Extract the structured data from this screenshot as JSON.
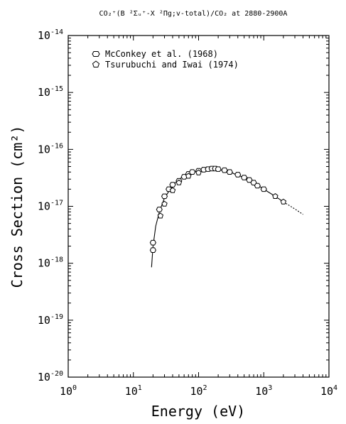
{
  "chart_data": {
    "type": "scatter",
    "title": "CO₂⁺(B ²Σᵤ⁺-X ²Πg;v-total)/CO₂ at 2880-2900A",
    "xlabel": "Energy (eV)",
    "ylabel": "Cross Section (cm²)",
    "x_scale": "log",
    "y_scale": "log",
    "xlim": [
      1,
      10000
    ],
    "ylim": [
      1e-20,
      1e-14
    ],
    "x_tick_labels": [
      {
        "base": "10",
        "exp": "0"
      },
      {
        "base": "10",
        "exp": "1"
      },
      {
        "base": "10",
        "exp": "2"
      },
      {
        "base": "10",
        "exp": "3"
      },
      {
        "base": "10",
        "exp": "4"
      }
    ],
    "y_tick_labels": [
      {
        "base": "10",
        "exp": "-20"
      },
      {
        "base": "10",
        "exp": "-19"
      },
      {
        "base": "10",
        "exp": "-18"
      },
      {
        "base": "10",
        "exp": "-17"
      },
      {
        "base": "10",
        "exp": "-16"
      },
      {
        "base": "10",
        "exp": "-15"
      },
      {
        "base": "10",
        "exp": "-14"
      }
    ],
    "grid": false,
    "legend_position": "top-left",
    "legend": [
      {
        "label": "McConkey et al. (1968)",
        "marker": "hexagon-wide"
      },
      {
        "label": "Tsurubuchi and Iwai (1974)",
        "marker": "pentagon"
      }
    ],
    "series": [
      {
        "name": "McConkey et al. (1968)",
        "marker": "hexagon-wide",
        "points": [
          [
            20,
            2.3e-18
          ],
          [
            20,
            1.7e-18
          ],
          [
            25,
            8.8e-18
          ],
          [
            30,
            1.5e-17
          ],
          [
            35,
            2e-17
          ],
          [
            40,
            2.4e-17
          ],
          [
            50,
            2.8e-17
          ],
          [
            60,
            3.3e-17
          ],
          [
            70,
            3.7e-17
          ],
          [
            80,
            4e-17
          ],
          [
            100,
            4.2e-17
          ],
          [
            120,
            4.4e-17
          ],
          [
            140,
            4.5e-17
          ],
          [
            160,
            4.6e-17
          ],
          [
            180,
            4.6e-17
          ],
          [
            200,
            4.5e-17
          ],
          [
            250,
            4.3e-17
          ],
          [
            300,
            4e-17
          ],
          [
            400,
            3.6e-17
          ],
          [
            500,
            3.2e-17
          ],
          [
            600,
            2.9e-17
          ],
          [
            700,
            2.6e-17
          ],
          [
            800,
            2.3e-17
          ],
          [
            1000,
            2e-17
          ]
        ]
      },
      {
        "name": "Tsurubuchi and Iwai (1974)",
        "marker": "pentagon",
        "points": [
          [
            26,
            6.8e-18
          ],
          [
            30,
            1.1e-17
          ],
          [
            40,
            1.9e-17
          ],
          [
            50,
            2.6e-17
          ],
          [
            70,
            3.4e-17
          ],
          [
            100,
            3.9e-17
          ],
          [
            1500,
            1.5e-17
          ],
          [
            2000,
            1.2e-17
          ]
        ]
      }
    ],
    "fit_curve": {
      "style": "solid",
      "points": [
        [
          19,
          8.5e-19
        ],
        [
          20,
          2e-18
        ],
        [
          22,
          4.5e-18
        ],
        [
          25,
          8e-18
        ],
        [
          30,
          1.4e-17
        ],
        [
          40,
          2.3e-17
        ],
        [
          50,
          3e-17
        ],
        [
          70,
          3.7e-17
        ],
        [
          100,
          4.2e-17
        ],
        [
          150,
          4.5e-17
        ],
        [
          200,
          4.45e-17
        ],
        [
          300,
          4e-17
        ],
        [
          500,
          3.2e-17
        ],
        [
          700,
          2.6e-17
        ],
        [
          1000,
          2e-17
        ],
        [
          1500,
          1.5e-17
        ],
        [
          2000,
          1.2e-17
        ]
      ]
    },
    "extrapolation_curve": {
      "style": "dotted",
      "points": [
        [
          2000,
          1.2e-17
        ],
        [
          3000,
          9e-18
        ],
        [
          4000,
          7.2e-18
        ]
      ]
    }
  }
}
